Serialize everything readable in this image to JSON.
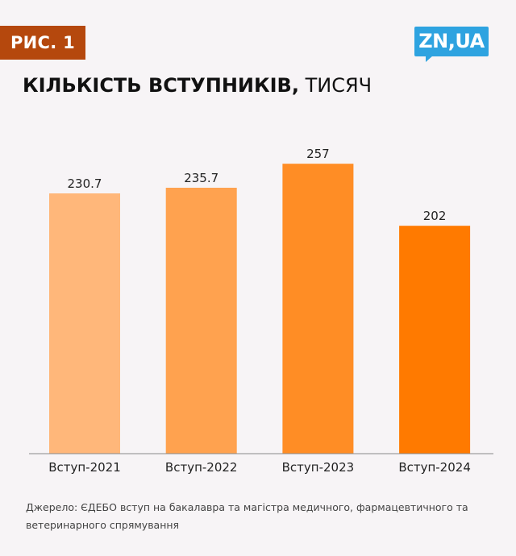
{
  "badge": "РИС. 1",
  "logo": "ZN,UA",
  "title": {
    "bold": "КІЛЬКІСТЬ ВСТУПНИКІВ,",
    "light": "ТИСЯЧ"
  },
  "source": "Джерело: ЄДЕБО вступ на бакалавра та магістра медичного, фармацевтичного та ветеринарного спрямування",
  "colors": {
    "badge": "#b5480d",
    "logo": "#2ea3e0",
    "background": "#f7f4f6"
  },
  "chart_data": {
    "type": "bar",
    "categories": [
      "Вступ-2021",
      "Вступ-2022",
      "Вступ-2023",
      "Вступ-2024"
    ],
    "values": [
      230.7,
      235.7,
      257,
      202
    ],
    "value_labels": [
      "230.7",
      "235.7",
      "257",
      "202"
    ],
    "bar_colors": [
      "#ffb77a",
      "#ffa24f",
      "#ff8d25",
      "#ff7a00"
    ],
    "ylim": [
      0,
      300
    ],
    "grid": false,
    "legend": "none"
  }
}
